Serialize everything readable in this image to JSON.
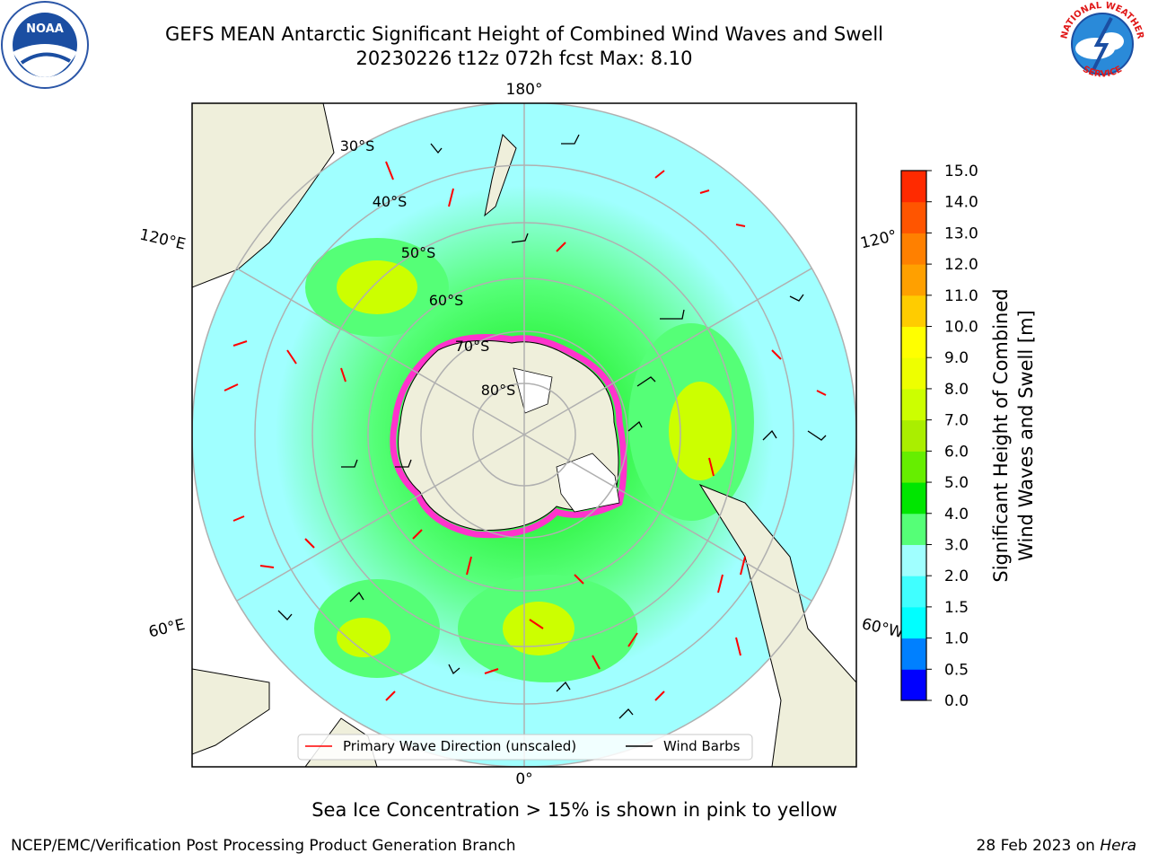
{
  "title_line1": "GEFS MEAN Antarctic Significant Height of Combined Wind Waves and Swell",
  "title_line2": "20230226 t12z 072h fcst   Max: 8.10",
  "caption": "Sea Ice Concentration > 15% is shown in pink to yellow",
  "footer_left": "NCEP/EMC/Verification Post Processing Product Generation Branch",
  "footer_right_prefix": "28 Feb 2023 on ",
  "footer_right_host": "Hera",
  "map": {
    "projection": "south-polar-stereographic",
    "center_longitude_bottom": "0°",
    "longitude_labels": [
      "180°",
      "120°E",
      "120°",
      "60°E",
      "60°W",
      "0°"
    ],
    "latitude_labels": [
      "30°S",
      "40°S",
      "50°S",
      "60°S",
      "70°S",
      "80°S"
    ]
  },
  "legend": {
    "wave_direction_label": "Primary Wave Direction (unscaled)",
    "wave_direction_color": "#ff0000",
    "wind_barbs_label": "Wind Barbs",
    "wind_barbs_color": "#000000"
  },
  "colorbar": {
    "label_line1": "Significant Height of Combined",
    "label_line2": "Wind Waves and Swell [m]",
    "min": 0.0,
    "max": 15.0,
    "tick_labels": [
      "0.0",
      "0.5",
      "1.0",
      "1.5",
      "2.0",
      "3.0",
      "4.0",
      "5.0",
      "6.0",
      "7.0",
      "8.0",
      "9.0",
      "10.0",
      "11.0",
      "12.0",
      "13.0",
      "14.0",
      "15.0"
    ],
    "colors": [
      "#0000ff",
      "#0080ff",
      "#00ffff",
      "#40ffff",
      "#a0ffff",
      "#55ff77",
      "#00e600",
      "#66ee00",
      "#aaee00",
      "#ccff00",
      "#eeff00",
      "#ffff00",
      "#ffcc00",
      "#ffa000",
      "#ff8000",
      "#ff5500",
      "#ff2a00"
    ]
  },
  "colors": {
    "land": "#efefdb",
    "ocean_low": "#a0ffff",
    "ocean_mid": "#55ff77",
    "ocean_high": "#00e600",
    "max_zone": "#ccff00",
    "sea_ice": "#ff33cc",
    "grid": "#b0b0b0"
  },
  "logos": {
    "left": "NOAA",
    "right_top": "NATIONAL WEATHER",
    "right_bottom": "SERVICE"
  }
}
